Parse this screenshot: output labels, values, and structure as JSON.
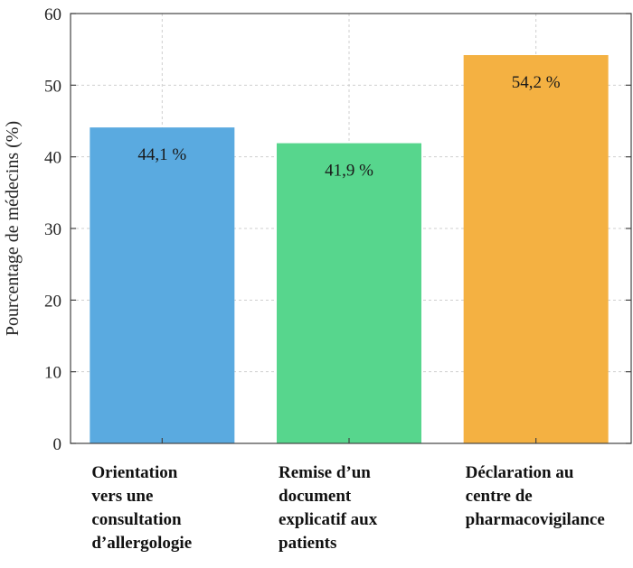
{
  "chart_data": {
    "type": "bar",
    "ylabel": "Pourcentage de médecins (%)",
    "xlabel": "",
    "title": "",
    "ylim": [
      0,
      60
    ],
    "yticks": [
      0,
      10,
      20,
      30,
      40,
      50,
      60
    ],
    "grid": true,
    "categories": [
      [
        "Orientation",
        "vers une",
        "consultation",
        "d’allergologie"
      ],
      [
        "Remise d’un",
        "document",
        "explicatif aux",
        "patients"
      ],
      [
        "Déclaration au",
        "centre de",
        "pharmacovigilance"
      ]
    ],
    "values": [
      44.1,
      41.9,
      54.2
    ],
    "data_labels": [
      "44,1 %",
      "41,9 %",
      "54,2 %"
    ],
    "colors": [
      "#5aaae0",
      "#57d68d",
      "#f4b142"
    ]
  }
}
